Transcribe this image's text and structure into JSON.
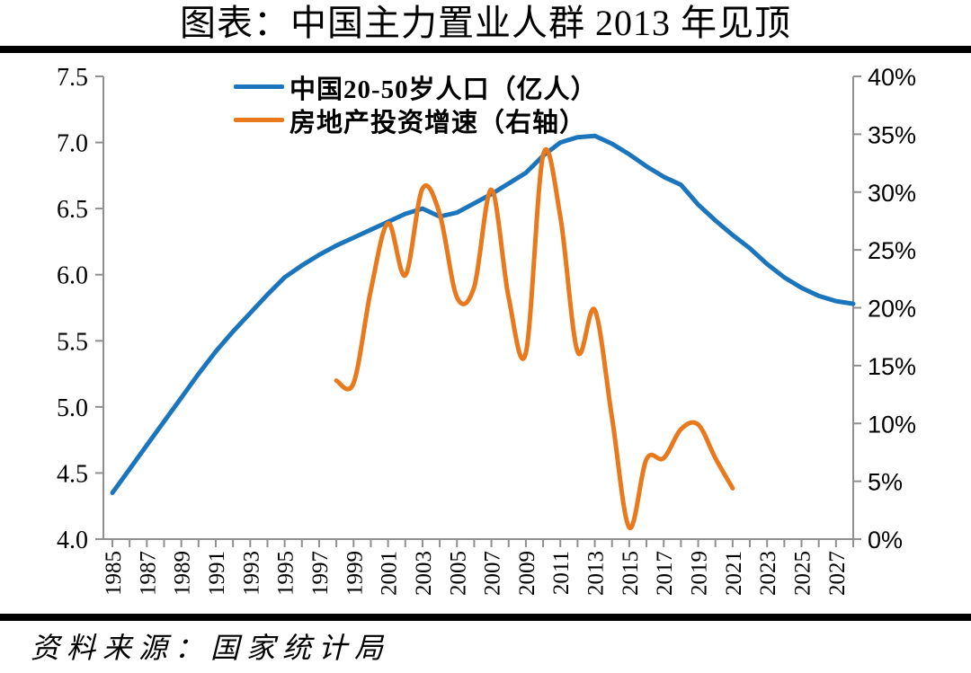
{
  "title": "图表：中国主力置业人群 2013 年见顶",
  "source_note": "资料来源：国家统计局",
  "legend": [
    {
      "label": "中国20-50岁人口（亿人）",
      "color": "#1b75bc"
    },
    {
      "label": "房地产投资增速（右轴）",
      "color": "#e8791d"
    }
  ],
  "colors": {
    "population_line": "#1b75bc",
    "investment_line": "#e8791d",
    "axis": "#8f8f8f",
    "text": "#000000",
    "divider": "#000000",
    "background": "#ffffff"
  },
  "chart_data": {
    "type": "line",
    "title": "图表：中国主力置业人群 2013 年见顶",
    "grid": false,
    "legend_position": "top-center",
    "x_axis": {
      "range": [
        1985,
        2028
      ],
      "minor_tick_every_years": 1,
      "label_every_years": 2,
      "labels": [
        "1985",
        "1987",
        "1989",
        "1991",
        "1993",
        "1995",
        "1997",
        "1999",
        "2001",
        "2003",
        "2005",
        "2007",
        "2009",
        "2011",
        "2013",
        "2015",
        "2017",
        "2019",
        "2021",
        "2023",
        "2025",
        "2027"
      ]
    },
    "y_axis_left": {
      "range": [
        4.0,
        7.5
      ],
      "tick_step": 0.5,
      "labels": [
        "7.5",
        "7.0",
        "6.5",
        "6.0",
        "5.5",
        "5.0",
        "4.5",
        "4.0"
      ]
    },
    "y_axis_right": {
      "range_percent": [
        0,
        40
      ],
      "tick_step_percent": 5,
      "labels": [
        "40%",
        "35%",
        "30%",
        "25%",
        "20%",
        "15%",
        "10%",
        "5%",
        "0%"
      ]
    },
    "series": [
      {
        "id": "population-20-50",
        "name": "中国20-50岁人口（亿人）",
        "axis": "left",
        "unit": "亿人",
        "color": "#1b75bc",
        "smooth": false,
        "years": [
          1985,
          1986,
          1987,
          1988,
          1989,
          1990,
          1991,
          1992,
          1993,
          1994,
          1995,
          1996,
          1997,
          1998,
          1999,
          2000,
          2001,
          2002,
          2003,
          2004,
          2005,
          2006,
          2007,
          2008,
          2009,
          2010,
          2011,
          2012,
          2013,
          2014,
          2015,
          2016,
          2017,
          2018,
          2019,
          2020,
          2021,
          2022,
          2023,
          2024,
          2025,
          2026,
          2027,
          2028
        ],
        "values": [
          4.35,
          4.53,
          4.71,
          4.89,
          5.07,
          5.25,
          5.42,
          5.57,
          5.71,
          5.85,
          5.98,
          6.07,
          6.15,
          6.22,
          6.28,
          6.34,
          6.4,
          6.46,
          6.5,
          6.44,
          6.47,
          6.54,
          6.61,
          6.69,
          6.77,
          6.9,
          7.0,
          7.04,
          7.05,
          6.99,
          6.91,
          6.82,
          6.74,
          6.68,
          6.53,
          6.41,
          6.3,
          6.2,
          6.08,
          5.98,
          5.9,
          5.84,
          5.8,
          5.78
        ]
      },
      {
        "id": "real-estate-investment-growth",
        "name": "房地产投资增速（右轴）",
        "axis": "right",
        "unit": "%",
        "color": "#e8791d",
        "smooth": true,
        "years": [
          1998,
          1999,
          2000,
          2001,
          2002,
          2003,
          2004,
          2005,
          2006,
          2007,
          2008,
          2009,
          2010,
          2011,
          2012,
          2013,
          2014,
          2015,
          2016,
          2017,
          2018,
          2019,
          2020,
          2021
        ],
        "values": [
          13.7,
          13.5,
          21.5,
          27.3,
          22.8,
          30.3,
          28.1,
          20.9,
          21.8,
          30.2,
          20.9,
          16.1,
          33.2,
          27.9,
          16.2,
          19.8,
          10.5,
          1.0,
          6.9,
          7.0,
          9.5,
          9.9,
          7.0,
          4.4
        ]
      }
    ]
  }
}
